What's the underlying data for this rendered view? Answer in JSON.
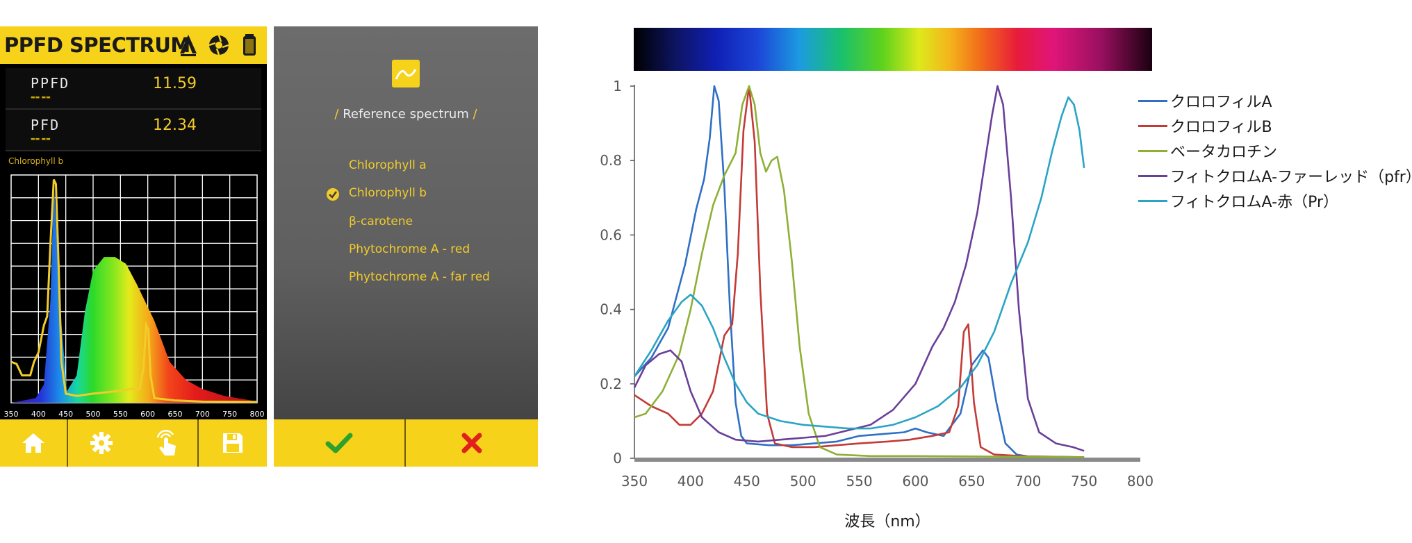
{
  "phone1": {
    "title": "PPFD SPECTRUM",
    "header_icons": [
      "triangle-a-icon",
      "aperture-icon",
      "battery-icon"
    ],
    "metrics": [
      {
        "label": "PPFD",
        "value": "11.59"
      },
      {
        "label": "PFD",
        "value": "12.34"
      }
    ],
    "selected_reference": "Chlorophyll b",
    "x_ticks": [
      "350",
      "400",
      "450",
      "500",
      "550",
      "600",
      "650",
      "700",
      "750",
      "800"
    ],
    "footer_icons": [
      "home-icon",
      "gear-icon",
      "touch-icon",
      "save-icon"
    ]
  },
  "phone2": {
    "title": "Reference spectrum",
    "title_prefix": "/",
    "title_suffix": "/",
    "options": [
      {
        "label": "Chlorophyll a",
        "selected": false
      },
      {
        "label": "Chlorophyll b",
        "selected": true
      },
      {
        "label": "β-carotene",
        "selected": false
      },
      {
        "label": "Phytochrome A - red",
        "selected": false
      },
      {
        "label": "Phytochrome A - far red",
        "selected": false
      }
    ],
    "footer_icons": [
      "check-icon",
      "close-icon"
    ],
    "colors": {
      "accent": "#f7d21b",
      "confirm": "#2ca12c",
      "cancel": "#e0201b"
    }
  },
  "chart_data": {
    "type": "line",
    "title": "",
    "xlabel": "波長（nm）",
    "ylabel": "",
    "xlim": [
      350,
      800
    ],
    "ylim": [
      0,
      1
    ],
    "x_ticks": [
      350,
      400,
      450,
      500,
      550,
      600,
      650,
      700,
      750,
      800
    ],
    "y_ticks": [
      0,
      0.2,
      0.4,
      0.6,
      0.8,
      1
    ],
    "y_tick_labels": [
      "0",
      "0.2",
      "0.4",
      "0.6",
      "0.8",
      "1"
    ],
    "grid": false,
    "legend_position": "top-right",
    "series": [
      {
        "name": "クロロフィルA",
        "color": "#2f6fc4",
        "points": [
          [
            350,
            0.22
          ],
          [
            365,
            0.27
          ],
          [
            380,
            0.35
          ],
          [
            395,
            0.52
          ],
          [
            405,
            0.67
          ],
          [
            412,
            0.75
          ],
          [
            417,
            0.86
          ],
          [
            421,
            1.0
          ],
          [
            425,
            0.96
          ],
          [
            430,
            0.73
          ],
          [
            435,
            0.4
          ],
          [
            440,
            0.15
          ],
          [
            445,
            0.06
          ],
          [
            450,
            0.04
          ],
          [
            470,
            0.035
          ],
          [
            490,
            0.035
          ],
          [
            510,
            0.04
          ],
          [
            530,
            0.045
          ],
          [
            550,
            0.06
          ],
          [
            570,
            0.065
          ],
          [
            590,
            0.07
          ],
          [
            600,
            0.08
          ],
          [
            610,
            0.07
          ],
          [
            625,
            0.06
          ],
          [
            640,
            0.12
          ],
          [
            650,
            0.25
          ],
          [
            660,
            0.29
          ],
          [
            665,
            0.27
          ],
          [
            672,
            0.15
          ],
          [
            680,
            0.04
          ],
          [
            690,
            0.01
          ],
          [
            700,
            0.005
          ],
          [
            750,
            0.003
          ]
        ]
      },
      {
        "name": "クロロフィルB",
        "color": "#c33a36",
        "points": [
          [
            350,
            0.17
          ],
          [
            365,
            0.14
          ],
          [
            380,
            0.12
          ],
          [
            390,
            0.09
          ],
          [
            400,
            0.09
          ],
          [
            410,
            0.12
          ],
          [
            420,
            0.18
          ],
          [
            430,
            0.33
          ],
          [
            437,
            0.36
          ],
          [
            442,
            0.55
          ],
          [
            447,
            0.88
          ],
          [
            452,
            1.0
          ],
          [
            457,
            0.85
          ],
          [
            462,
            0.45
          ],
          [
            468,
            0.12
          ],
          [
            475,
            0.04
          ],
          [
            490,
            0.03
          ],
          [
            510,
            0.03
          ],
          [
            530,
            0.035
          ],
          [
            550,
            0.04
          ],
          [
            575,
            0.045
          ],
          [
            595,
            0.05
          ],
          [
            615,
            0.06
          ],
          [
            630,
            0.07
          ],
          [
            638,
            0.14
          ],
          [
            643,
            0.34
          ],
          [
            647,
            0.36
          ],
          [
            652,
            0.15
          ],
          [
            658,
            0.03
          ],
          [
            670,
            0.01
          ],
          [
            700,
            0.005
          ],
          [
            750,
            0.003
          ]
        ]
      },
      {
        "name": "ベータカロチン",
        "color": "#8db035",
        "points": [
          [
            350,
            0.11
          ],
          [
            360,
            0.12
          ],
          [
            375,
            0.18
          ],
          [
            390,
            0.28
          ],
          [
            400,
            0.4
          ],
          [
            410,
            0.55
          ],
          [
            420,
            0.68
          ],
          [
            430,
            0.76
          ],
          [
            440,
            0.82
          ],
          [
            446,
            0.95
          ],
          [
            452,
            1.0
          ],
          [
            457,
            0.95
          ],
          [
            462,
            0.82
          ],
          [
            467,
            0.77
          ],
          [
            472,
            0.8
          ],
          [
            477,
            0.81
          ],
          [
            483,
            0.72
          ],
          [
            490,
            0.53
          ],
          [
            497,
            0.3
          ],
          [
            505,
            0.12
          ],
          [
            515,
            0.03
          ],
          [
            530,
            0.01
          ],
          [
            560,
            0.006
          ],
          [
            600,
            0.006
          ],
          [
            650,
            0.005
          ],
          [
            700,
            0.004
          ],
          [
            750,
            0.003
          ]
        ]
      },
      {
        "name": "フィトクロムA-ファーレッド（pfr）",
        "color": "#6a3f97",
        "points": [
          [
            350,
            0.19
          ],
          [
            360,
            0.25
          ],
          [
            372,
            0.28
          ],
          [
            382,
            0.29
          ],
          [
            392,
            0.26
          ],
          [
            400,
            0.18
          ],
          [
            410,
            0.11
          ],
          [
            425,
            0.07
          ],
          [
            440,
            0.05
          ],
          [
            460,
            0.045
          ],
          [
            480,
            0.05
          ],
          [
            500,
            0.055
          ],
          [
            520,
            0.06
          ],
          [
            540,
            0.075
          ],
          [
            560,
            0.09
          ],
          [
            580,
            0.13
          ],
          [
            600,
            0.2
          ],
          [
            615,
            0.3
          ],
          [
            625,
            0.35
          ],
          [
            635,
            0.42
          ],
          [
            645,
            0.52
          ],
          [
            655,
            0.66
          ],
          [
            662,
            0.8
          ],
          [
            668,
            0.92
          ],
          [
            673,
            1.0
          ],
          [
            678,
            0.95
          ],
          [
            685,
            0.7
          ],
          [
            692,
            0.4
          ],
          [
            700,
            0.16
          ],
          [
            710,
            0.07
          ],
          [
            725,
            0.04
          ],
          [
            740,
            0.03
          ],
          [
            750,
            0.02
          ]
        ]
      },
      {
        "name": "フィトクロムA-赤（Pr）",
        "color": "#2aa4c4",
        "points": [
          [
            350,
            0.22
          ],
          [
            365,
            0.29
          ],
          [
            380,
            0.37
          ],
          [
            392,
            0.42
          ],
          [
            400,
            0.44
          ],
          [
            410,
            0.41
          ],
          [
            420,
            0.35
          ],
          [
            430,
            0.27
          ],
          [
            440,
            0.2
          ],
          [
            450,
            0.15
          ],
          [
            460,
            0.12
          ],
          [
            480,
            0.1
          ],
          [
            500,
            0.09
          ],
          [
            520,
            0.085
          ],
          [
            540,
            0.08
          ],
          [
            560,
            0.08
          ],
          [
            580,
            0.09
          ],
          [
            600,
            0.11
          ],
          [
            620,
            0.14
          ],
          [
            640,
            0.19
          ],
          [
            655,
            0.25
          ],
          [
            670,
            0.34
          ],
          [
            685,
            0.47
          ],
          [
            700,
            0.58
          ],
          [
            712,
            0.7
          ],
          [
            722,
            0.83
          ],
          [
            730,
            0.92
          ],
          [
            736,
            0.97
          ],
          [
            741,
            0.95
          ],
          [
            746,
            0.88
          ],
          [
            750,
            0.78
          ]
        ]
      }
    ]
  },
  "phone1_chart": {
    "type": "area",
    "xlim": [
      350,
      800
    ],
    "ylim": [
      0,
      1
    ],
    "x_ticks": [
      350,
      400,
      450,
      500,
      550,
      600,
      650,
      700,
      750,
      800
    ],
    "series": [
      {
        "name": "",
        "color": "#f2cc2a",
        "points": [
          [
            350,
            0.18
          ],
          [
            360,
            0.17
          ],
          [
            370,
            0.12
          ],
          [
            378,
            0.12
          ],
          [
            385,
            0.12
          ],
          [
            392,
            0.18
          ],
          [
            400,
            0.22
          ],
          [
            410,
            0.34
          ],
          [
            416,
            0.38
          ],
          [
            422,
            0.7
          ],
          [
            428,
            0.98
          ],
          [
            432,
            0.96
          ],
          [
            437,
            0.6
          ],
          [
            442,
            0.18
          ],
          [
            450,
            0.04
          ],
          [
            470,
            0.03
          ],
          [
            500,
            0.04
          ],
          [
            540,
            0.05
          ],
          [
            570,
            0.06
          ],
          [
            585,
            0.06
          ],
          [
            592,
            0.15
          ],
          [
            597,
            0.34
          ],
          [
            601,
            0.32
          ],
          [
            605,
            0.12
          ],
          [
            612,
            0.02
          ],
          [
            650,
            0.01
          ],
          [
            700,
            0.005
          ],
          [
            800,
            0.004
          ]
        ]
      }
    ]
  }
}
